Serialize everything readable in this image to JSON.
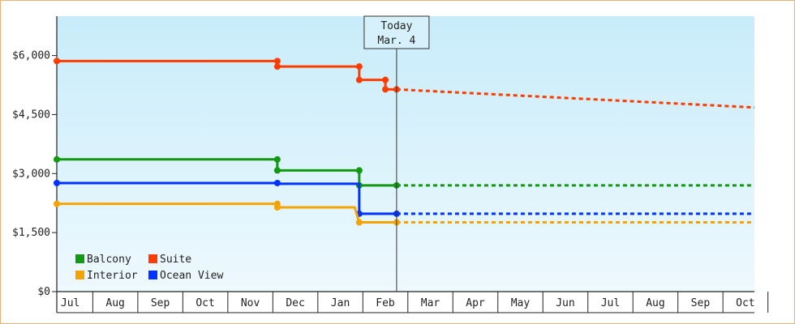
{
  "chart_data": {
    "type": "line",
    "title": "",
    "xlabel": "",
    "ylabel": "",
    "ylim": [
      0,
      7000
    ],
    "y_ticks": [
      {
        "value": 0,
        "label": "$0"
      },
      {
        "value": 1500,
        "label": "$1,500"
      },
      {
        "value": 3000,
        "label": "$3,000"
      },
      {
        "value": 4500,
        "label": "$4,500"
      },
      {
        "value": 6000,
        "label": "$6,000"
      }
    ],
    "x_domain": [
      0,
      15.5
    ],
    "x_ticks": [
      "Jul",
      "Aug",
      "Sep",
      "Oct",
      "Nov",
      "Dec",
      "Jan",
      "Feb",
      "Mar",
      "Apr",
      "May",
      "Jun",
      "Jul",
      "Aug",
      "Sep",
      "Oct"
    ],
    "grid": false,
    "today_marker": {
      "x": 7.55,
      "line1": "Today",
      "line2": "Mar. 4"
    },
    "legend_position": "bottom-left",
    "series": [
      {
        "name": "Suite",
        "color": "#ff3c00",
        "points": [
          [
            0,
            5860
          ],
          [
            4.9,
            5860
          ],
          [
            4.9,
            5720
          ],
          [
            6.72,
            5720
          ],
          [
            6.72,
            5380
          ],
          [
            7.3,
            5380
          ],
          [
            7.3,
            5140
          ],
          [
            7.55,
            5140
          ]
        ],
        "markers": [
          [
            0,
            5860
          ],
          [
            4.9,
            5860
          ],
          [
            4.9,
            5720
          ],
          [
            6.72,
            5720
          ],
          [
            6.72,
            5380
          ],
          [
            7.3,
            5380
          ],
          [
            7.3,
            5140
          ],
          [
            7.55,
            5140
          ]
        ],
        "forecast": [
          [
            7.55,
            5140
          ],
          [
            15.5,
            4680
          ]
        ]
      },
      {
        "name": "Balcony",
        "color": "#119911",
        "points": [
          [
            0,
            3360
          ],
          [
            4.9,
            3360
          ],
          [
            4.9,
            3080
          ],
          [
            6.72,
            3080
          ],
          [
            6.72,
            2700
          ],
          [
            7.55,
            2700
          ]
        ],
        "markers": [
          [
            0,
            3360
          ],
          [
            4.9,
            3360
          ],
          [
            4.9,
            3080
          ],
          [
            6.72,
            3080
          ],
          [
            6.72,
            2700
          ],
          [
            7.55,
            2700
          ]
        ],
        "forecast": [
          [
            7.55,
            2700
          ],
          [
            15.5,
            2700
          ]
        ]
      },
      {
        "name": "Ocean View",
        "color": "#0033ff",
        "points": [
          [
            0,
            2760
          ],
          [
            4.9,
            2760
          ],
          [
            4.9,
            2740
          ],
          [
            6.72,
            2740
          ],
          [
            6.72,
            1980
          ],
          [
            7.55,
            1980
          ]
        ],
        "markers": [
          [
            0,
            2760
          ],
          [
            4.9,
            2760
          ],
          [
            6.72,
            1980
          ],
          [
            7.55,
            1980
          ]
        ],
        "forecast": [
          [
            7.55,
            1980
          ],
          [
            15.5,
            1980
          ]
        ]
      },
      {
        "name": "Interior",
        "color": "#f5a300",
        "points": [
          [
            0,
            2230
          ],
          [
            4.9,
            2230
          ],
          [
            4.9,
            2140
          ],
          [
            6.62,
            2140
          ],
          [
            6.72,
            1760
          ],
          [
            7.55,
            1760
          ]
        ],
        "markers": [
          [
            0,
            2230
          ],
          [
            4.9,
            2230
          ],
          [
            4.9,
            2140
          ],
          [
            6.72,
            1760
          ],
          [
            7.55,
            1760
          ]
        ],
        "forecast": [
          [
            7.55,
            1760
          ],
          [
            15.5,
            1760
          ]
        ]
      }
    ],
    "legend_items": [
      {
        "name": "Balcony",
        "color": "#119911"
      },
      {
        "name": "Suite",
        "color": "#ff3c00"
      },
      {
        "name": "Interior",
        "color": "#f5a300"
      },
      {
        "name": "Ocean View",
        "color": "#0033ff"
      }
    ]
  }
}
